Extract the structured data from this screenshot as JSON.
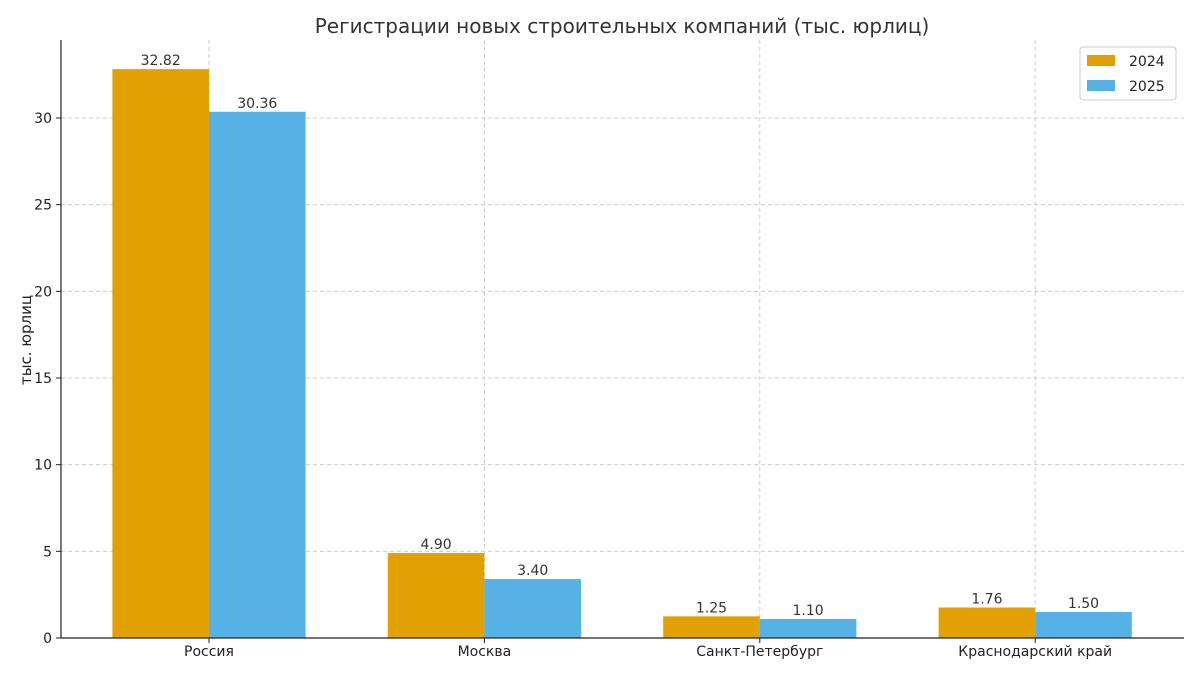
{
  "chart_data": {
    "type": "bar",
    "title": "Регистрации новых строительных компаний (тыс. юрлиц)",
    "xlabel": "",
    "ylabel": "тыс. юрлиц",
    "categories": [
      "Россия",
      "Москва",
      "Санкт-Петербург",
      "Краснодарский край"
    ],
    "series": [
      {
        "name": "2024",
        "color": "#E3A003",
        "values": [
          32.82,
          4.9,
          1.25,
          1.76
        ],
        "labels": [
          "32.82",
          "4.90",
          "1.25",
          "1.76"
        ]
      },
      {
        "name": "2025",
        "color": "#56B2E5",
        "values": [
          30.36,
          3.4,
          1.1,
          1.5
        ],
        "labels": [
          "30.36",
          "3.40",
          "1.10",
          "1.50"
        ]
      }
    ],
    "ylim": [
      0,
      34.5
    ],
    "yticks": [
      0,
      5,
      10,
      15,
      20,
      25,
      30
    ],
    "grid": true,
    "legend_position": "top-right"
  }
}
